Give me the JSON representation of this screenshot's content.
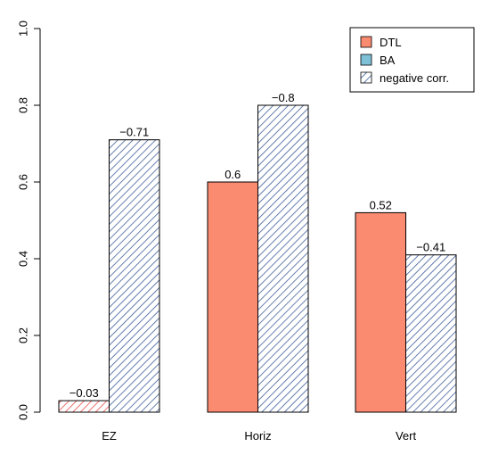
{
  "chart_data": {
    "type": "bar",
    "title": "",
    "xlabel": "",
    "ylabel": "",
    "categories": [
      "EZ",
      "Horiz",
      "Vert"
    ],
    "series": [
      {
        "name": "DTL",
        "values": [
          0.03,
          0.6,
          0.52
        ]
      },
      {
        "name": "BA",
        "values": [
          0.71,
          0.8,
          0.41
        ]
      }
    ],
    "data_labels": [
      [
        "−0.03",
        "0.6",
        "0.52"
      ],
      [
        "−0.71",
        "−0.8",
        "−0.41"
      ]
    ],
    "negative_corr": [
      [
        true,
        false,
        false
      ],
      [
        true,
        true,
        true
      ]
    ],
    "ylim": [
      0,
      1.0
    ],
    "yticks": [
      "0.0",
      "0.2",
      "0.4",
      "0.6",
      "0.8",
      "1.0"
    ],
    "legend": {
      "position": "top-right",
      "entries": [
        "DTL",
        "BA",
        "negative corr."
      ]
    },
    "colors": {
      "DTL": "#fa8a70",
      "BA": "#7ec0d8",
      "DTL_hatch": "#e8544f",
      "BA_hatch": "#3f5f9b"
    }
  }
}
